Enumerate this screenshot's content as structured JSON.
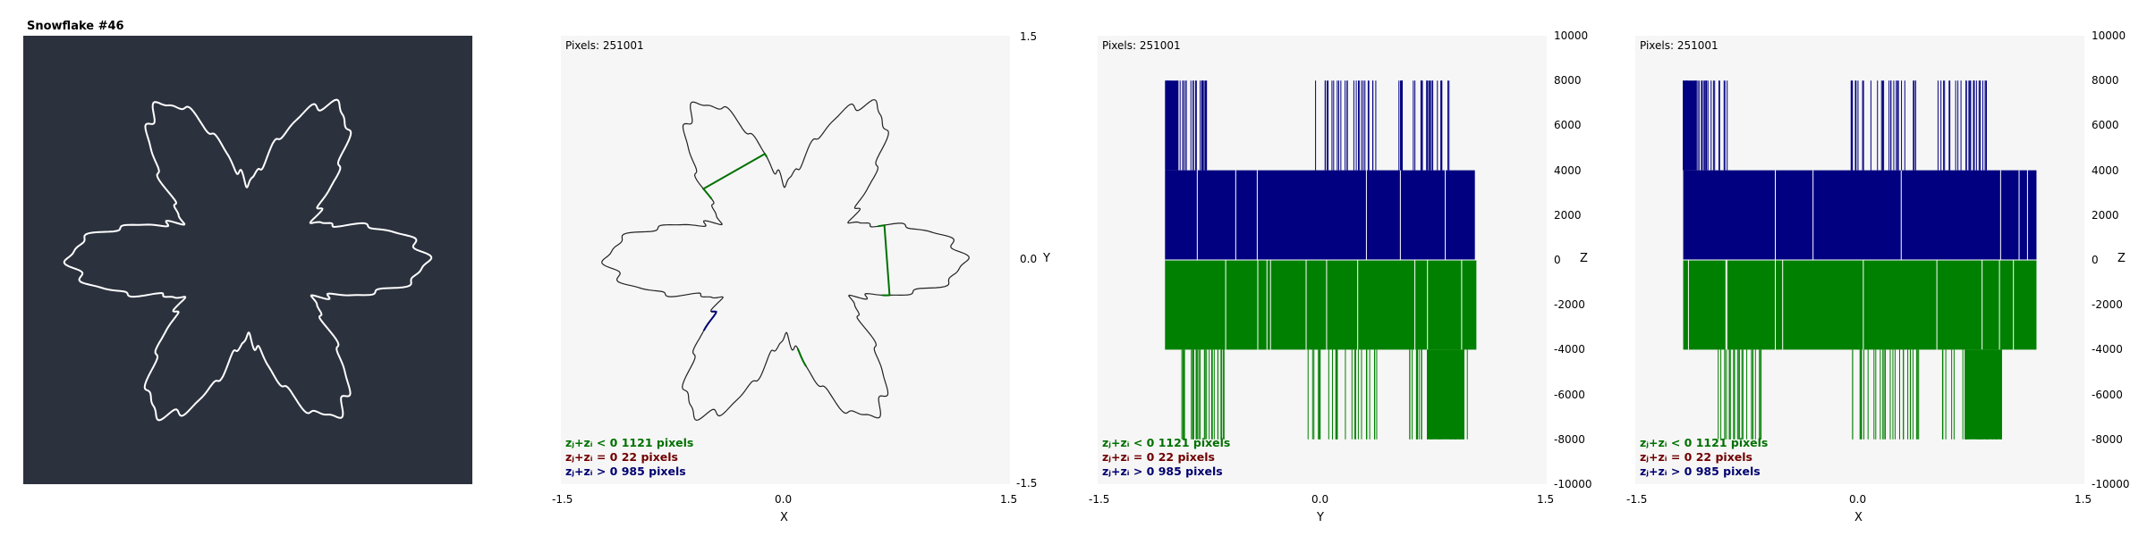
{
  "title": "Snowflake #46",
  "colors": {
    "dark_bg": "#2b313d",
    "plot_bg": "#f6f6f6",
    "negative": "#007000",
    "zero": "#700000",
    "positive": "#000070",
    "fill_positive": "#000080",
    "fill_negative": "#008000"
  },
  "legend": [
    {
      "text": "zⱼ+zᵢ < 0  1121 pixels",
      "color": "#007000"
    },
    {
      "text": "zⱼ+zᵢ = 0  22 pixels",
      "color": "#700000"
    },
    {
      "text": "zⱼ+zᵢ > 0  985 pixels",
      "color": "#000070"
    }
  ],
  "chart_data": [
    {
      "type": "image",
      "title": "Snowflake #46"
    },
    {
      "type": "scatter",
      "pixels_label": "Pixels: 251001",
      "xlabel": "X",
      "ylabel": "Y",
      "xlim": [
        -1.5,
        1.5
      ],
      "ylim": [
        -1.5,
        1.5
      ],
      "xticks": [
        "-1.5",
        "0.0",
        "1.5"
      ],
      "yticks": [
        "1.5",
        "0.0",
        "-1.5"
      ],
      "counts": {
        "negative": 1121,
        "zero": 22,
        "positive": 985
      }
    },
    {
      "type": "bar",
      "pixels_label": "Pixels: 251001",
      "xlabel": "Y",
      "ylabel": "Z",
      "xlim": [
        -1.5,
        1.5
      ],
      "ylim": [
        -10000,
        10000
      ],
      "xticks": [
        "-1.5",
        "0.0",
        "1.5"
      ],
      "yticks": [
        "10000",
        "8000",
        "6000",
        "4000",
        "2000",
        "0",
        "-2000",
        "-4000",
        "-6000",
        "-8000",
        "-10000"
      ],
      "positive_band": {
        "x": [
          -1.05,
          1.02
        ],
        "y": [
          0,
          4000
        ]
      },
      "negative_band": {
        "x": [
          -1.05,
          1.03
        ],
        "y": [
          -4000,
          0
        ]
      },
      "upper_spikes_range": [
        4000,
        8000
      ],
      "lower_spikes_range": [
        -8000,
        -4000
      ]
    },
    {
      "type": "bar",
      "pixels_label": "Pixels: 251001",
      "xlabel": "X",
      "ylabel": "Z",
      "xlim": [
        -1.5,
        1.5
      ],
      "ylim": [
        -10000,
        10000
      ],
      "xticks": [
        "-1.5",
        "0.0",
        "1.5"
      ],
      "yticks": [
        "10000",
        "8000",
        "6000",
        "4000",
        "2000",
        "0",
        "-2000",
        "-4000",
        "-6000",
        "-8000",
        "-10000"
      ],
      "positive_band": {
        "x": [
          -1.18,
          1.18
        ],
        "y": [
          0,
          4000
        ]
      },
      "negative_band": {
        "x": [
          -1.18,
          1.18
        ],
        "y": [
          -4000,
          0
        ]
      },
      "upper_spikes_range": [
        4000,
        8000
      ],
      "lower_spikes_range": [
        -8000,
        -4000
      ]
    }
  ]
}
